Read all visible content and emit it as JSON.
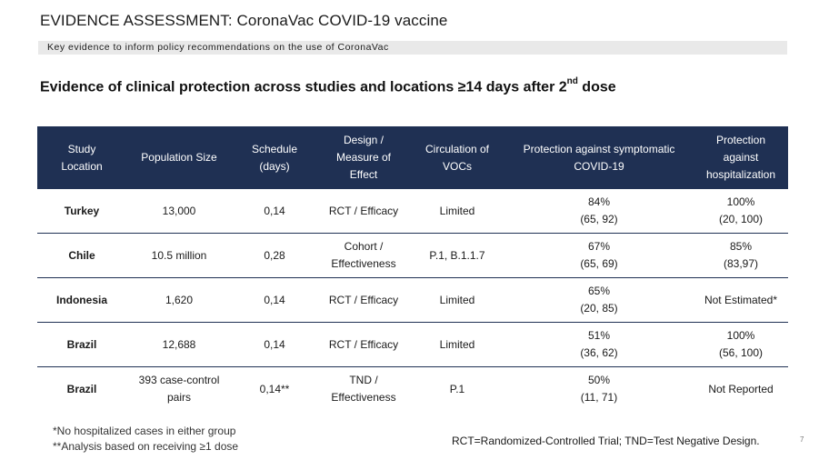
{
  "header": {
    "title": "EVIDENCE ASSESSMENT: CoronaVac COVID-19 vaccine",
    "subtitle": "Key evidence to inform policy recommendations on the use of CoronaVac"
  },
  "section": {
    "heading_pre": "Evidence of clinical protection across studies and locations ≥14 days after 2",
    "heading_sup": "nd",
    "heading_post": " dose"
  },
  "table": {
    "columns": [
      [
        "Study",
        "Location"
      ],
      [
        "Population Size"
      ],
      [
        "Schedule",
        "(days)"
      ],
      [
        "Design /",
        "Measure of",
        "Effect"
      ],
      [
        "Circulation of",
        "VOCs"
      ],
      [
        "Protection against symptomatic",
        "COVID-19"
      ],
      [
        "Protection",
        "against",
        "hospitalization"
      ]
    ],
    "rows": [
      {
        "location": "Turkey",
        "population": [
          "13,000"
        ],
        "schedule": "0,14",
        "design": [
          "RCT / Efficacy"
        ],
        "vocs": "Limited",
        "symptomatic": [
          "84%",
          "(65, 92)"
        ],
        "hospitalization": [
          "100%",
          "(20, 100)"
        ]
      },
      {
        "location": "Chile",
        "population": [
          "10.5 million"
        ],
        "schedule": "0,28",
        "design": [
          "Cohort /",
          "Effectiveness"
        ],
        "vocs": "P.1, B.1.1.7",
        "symptomatic": [
          "67%",
          "(65, 69)"
        ],
        "hospitalization": [
          "85%",
          "(83,97)"
        ]
      },
      {
        "location": "Indonesia",
        "population": [
          "1,620"
        ],
        "schedule": "0,14",
        "design": [
          "RCT / Efficacy"
        ],
        "vocs": "Limited",
        "symptomatic": [
          "65%",
          "(20, 85)"
        ],
        "hospitalization": [
          "Not Estimated*"
        ]
      },
      {
        "location": "Brazil",
        "population": [
          "12,688"
        ],
        "schedule": "0,14",
        "design": [
          "RCT / Efficacy"
        ],
        "vocs": "Limited",
        "symptomatic": [
          "51%",
          "(36, 62)"
        ],
        "hospitalization": [
          "100%",
          "(56, 100)"
        ]
      },
      {
        "location": "Brazil",
        "population": [
          "393 case-control",
          "pairs"
        ],
        "schedule": "0,14**",
        "design": [
          "TND /",
          "Effectiveness"
        ],
        "vocs": "P.1",
        "symptomatic": [
          "50%",
          "(11, 71)"
        ],
        "hospitalization": [
          "Not Reported"
        ]
      }
    ]
  },
  "footnotes": [
    "*No hospitalized cases in either group",
    "**Analysis based on receiving ≥1 dose"
  ],
  "abbreviations": "RCT=Randomized-Controlled Trial; TND=Test Negative Design.",
  "page_number": "7",
  "colors": {
    "header_bg": "#1f3053",
    "subtitle_bar": "#e9e9e9"
  }
}
